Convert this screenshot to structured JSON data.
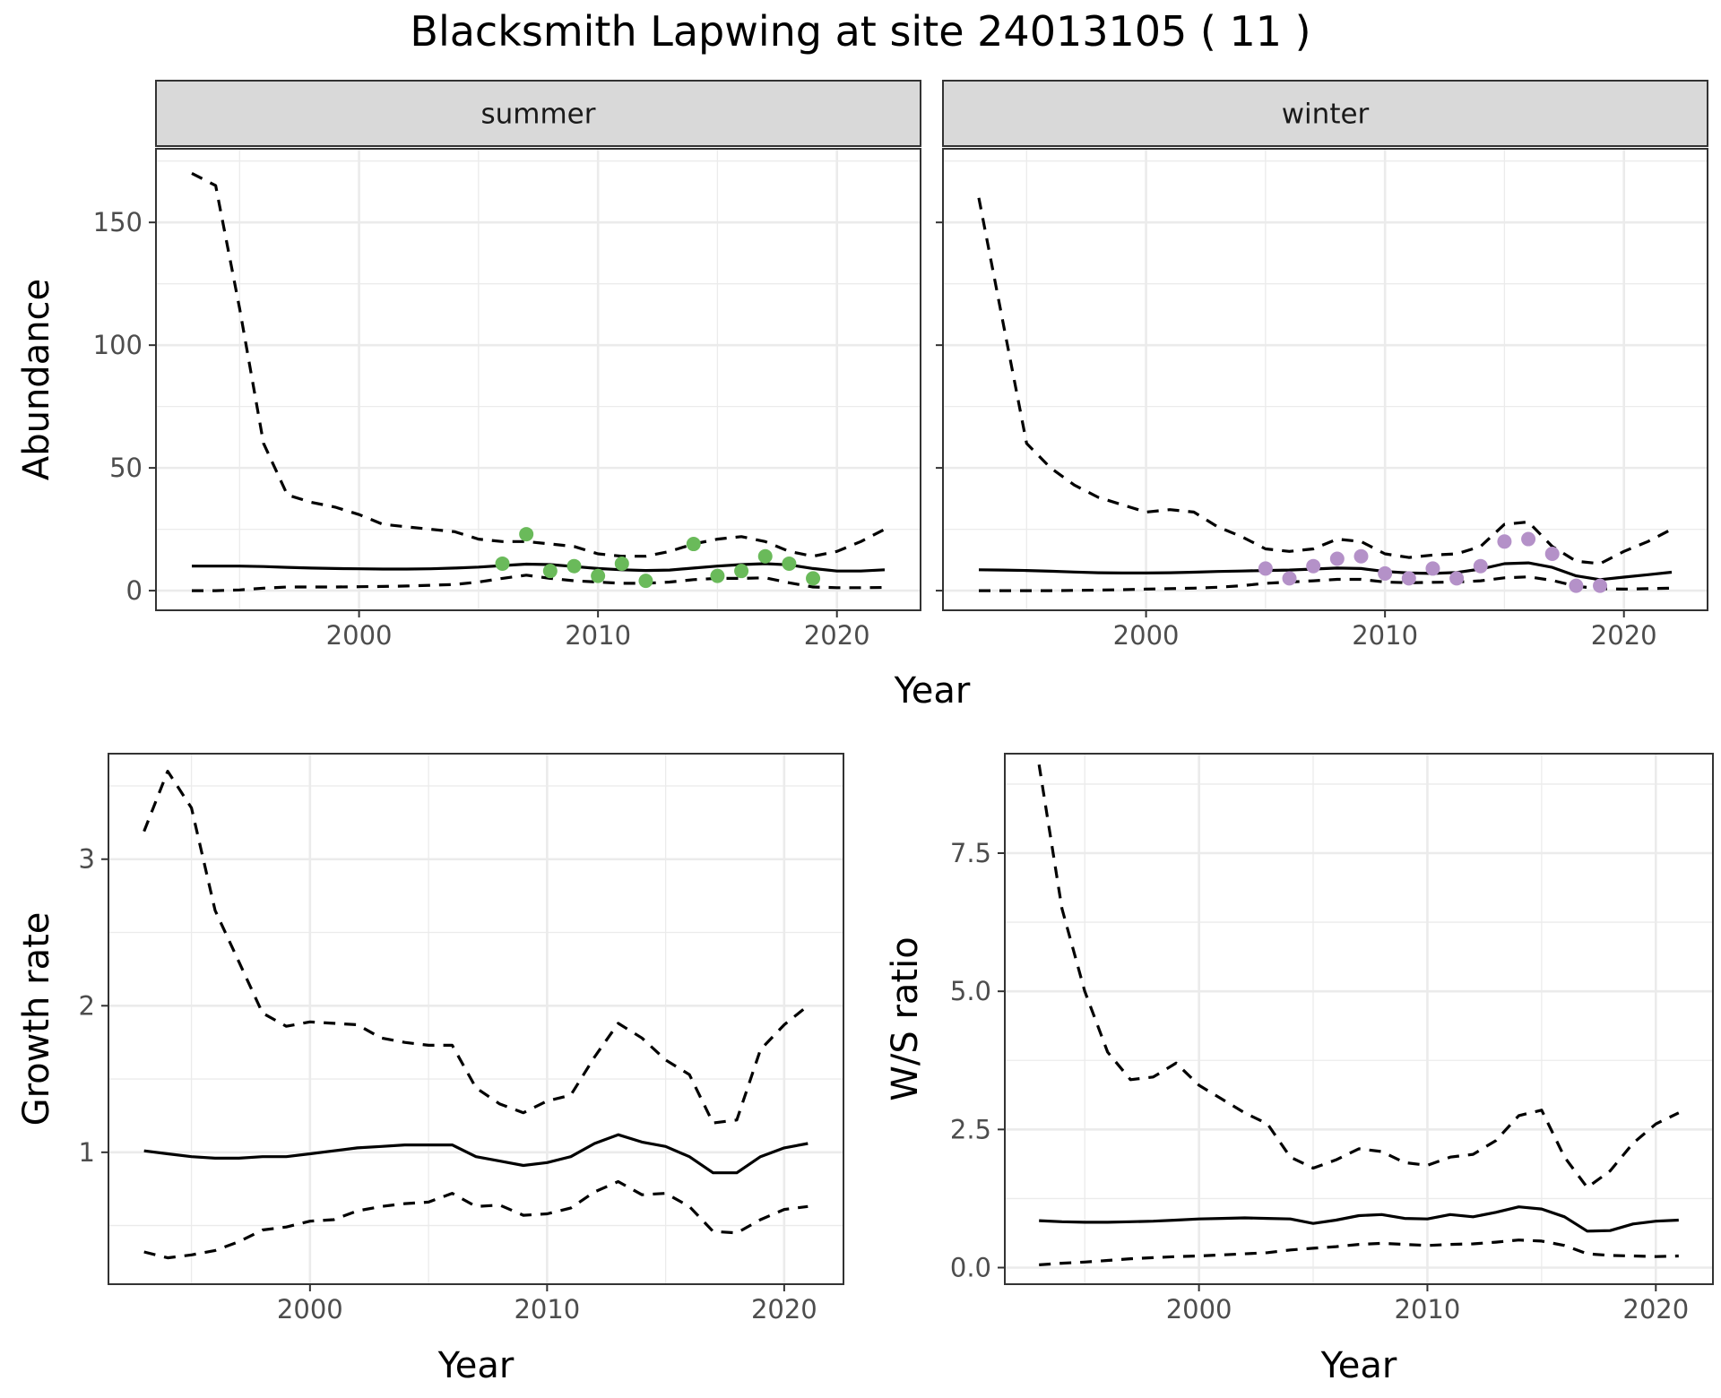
{
  "figure": {
    "title": "Blacksmith Lapwing at site 24013105 ( 11 )"
  },
  "colors": {
    "summer_points": "#6aba5a",
    "winter_points": "#b491c8",
    "lines": "#000000",
    "grid": "#ebebeb",
    "strip": "#d9d9d9"
  },
  "chart_data": [
    {
      "type": "line",
      "panel": "summer",
      "strip_label": "summer",
      "xlabel": "Year",
      "ylabel": "Abundance",
      "xlim": [
        1991.5,
        2023.5
      ],
      "ylim": [
        -8,
        180
      ],
      "xticks": [
        2000,
        2010,
        2020
      ],
      "yticks": [
        0,
        50,
        100,
        150
      ],
      "x": [
        1993,
        1994,
        1995,
        1996,
        1997,
        1998,
        1999,
        2000,
        2001,
        2002,
        2003,
        2004,
        2005,
        2006,
        2007,
        2008,
        2009,
        2010,
        2011,
        2012,
        2013,
        2014,
        2015,
        2016,
        2017,
        2018,
        2019,
        2020,
        2021,
        2022
      ],
      "series": [
        {
          "style": "solid",
          "values": [
            10,
            10,
            10,
            9.8,
            9.5,
            9.2,
            9,
            8.9,
            8.8,
            8.8,
            8.9,
            9.2,
            9.6,
            10.2,
            10.8,
            10.6,
            9.8,
            9,
            8.5,
            8.2,
            8.4,
            9.2,
            10,
            10.6,
            11,
            10.5,
            9,
            8,
            8,
            8.5
          ]
        },
        {
          "style": "dashed",
          "values": [
            170,
            165,
            115,
            60,
            39,
            36,
            34,
            31,
            27,
            26,
            25,
            24,
            21,
            20,
            20,
            19,
            18,
            15,
            14,
            14,
            16,
            19,
            21,
            22,
            20,
            16,
            14,
            16,
            20,
            25
          ]
        },
        {
          "style": "dashed",
          "values": [
            0,
            0,
            0.3,
            1,
            1.5,
            1.5,
            1.5,
            1.6,
            1.7,
            1.9,
            2.2,
            2.5,
            3.5,
            5,
            6.3,
            5,
            4,
            3.5,
            3,
            3,
            3.5,
            4.5,
            5,
            5,
            5.2,
            3.2,
            1.5,
            1.2,
            1.2,
            1.3
          ]
        },
        {
          "style": "points",
          "points": [
            [
              2006,
              11
            ],
            [
              2007,
              23
            ],
            [
              2008,
              8
            ],
            [
              2009,
              10
            ],
            [
              2010,
              6
            ],
            [
              2011,
              11
            ],
            [
              2012,
              4
            ],
            [
              2014,
              19
            ],
            [
              2015,
              6
            ],
            [
              2016,
              8
            ],
            [
              2017,
              14
            ],
            [
              2018,
              11
            ],
            [
              2019,
              5
            ]
          ]
        }
      ]
    },
    {
      "type": "line",
      "panel": "winter",
      "strip_label": "winter",
      "xlabel": "Year",
      "ylabel": "Abundance",
      "xlim": [
        1991.5,
        2023.5
      ],
      "ylim": [
        -8,
        180
      ],
      "xticks": [
        2000,
        2010,
        2020
      ],
      "yticks": [
        0,
        50,
        100,
        150
      ],
      "x": [
        1993,
        1994,
        1995,
        1996,
        1997,
        1998,
        1999,
        2000,
        2001,
        2002,
        2003,
        2004,
        2005,
        2006,
        2007,
        2008,
        2009,
        2010,
        2011,
        2012,
        2013,
        2014,
        2015,
        2016,
        2017,
        2018,
        2019,
        2020,
        2021,
        2022
      ],
      "series": [
        {
          "style": "solid",
          "values": [
            8.5,
            8.4,
            8.2,
            7.9,
            7.6,
            7.3,
            7.2,
            7.2,
            7.3,
            7.5,
            7.8,
            8,
            8.2,
            8.4,
            8.8,
            9.2,
            9,
            7.8,
            7.2,
            7,
            7.4,
            8.8,
            11,
            11.3,
            9.5,
            6,
            4.5,
            5.5,
            6.5,
            7.5
          ]
        },
        {
          "style": "dashed",
          "values": [
            160,
            110,
            60,
            50,
            43,
            38,
            35,
            32,
            33,
            32,
            26,
            22,
            17,
            16,
            17,
            21,
            20,
            15,
            13.5,
            14.5,
            15,
            18,
            27,
            28,
            18,
            12,
            11,
            16,
            20,
            25
          ]
        },
        {
          "style": "dashed",
          "values": [
            0,
            0,
            0,
            0,
            0.1,
            0.2,
            0.4,
            0.6,
            0.8,
            1,
            1.4,
            2,
            3,
            3.5,
            4,
            4.6,
            4.6,
            3.5,
            3.2,
            3.4,
            3.5,
            4,
            5.2,
            5.6,
            4.2,
            1.8,
            0.8,
            0.6,
            0.8,
            1
          ]
        },
        {
          "style": "points",
          "points": [
            [
              2005,
              9
            ],
            [
              2006,
              5
            ],
            [
              2007,
              10
            ],
            [
              2008,
              13
            ],
            [
              2009,
              14
            ],
            [
              2010,
              7
            ],
            [
              2011,
              5
            ],
            [
              2012,
              9
            ],
            [
              2013,
              5
            ],
            [
              2014,
              10
            ],
            [
              2015,
              20
            ],
            [
              2016,
              21
            ],
            [
              2017,
              15
            ],
            [
              2018,
              2
            ],
            [
              2019,
              2
            ]
          ]
        }
      ]
    },
    {
      "type": "line",
      "panel": "growth",
      "xlabel": "Year",
      "ylabel": "Growth rate",
      "xlim": [
        1991.5,
        2022.5
      ],
      "ylim": [
        0.1,
        3.72
      ],
      "xticks": [
        2000,
        2010,
        2020
      ],
      "yticks": [
        1,
        2,
        3
      ],
      "x": [
        1993,
        1994,
        1995,
        1996,
        1997,
        1998,
        1999,
        2000,
        2001,
        2002,
        2003,
        2004,
        2005,
        2006,
        2007,
        2008,
        2009,
        2010,
        2011,
        2012,
        2013,
        2014,
        2015,
        2016,
        2017,
        2018,
        2019,
        2020,
        2021
      ],
      "series": [
        {
          "style": "solid",
          "values": [
            1.01,
            0.99,
            0.97,
            0.96,
            0.96,
            0.97,
            0.97,
            0.99,
            1.01,
            1.03,
            1.04,
            1.05,
            1.05,
            1.05,
            0.97,
            0.94,
            0.91,
            0.93,
            0.97,
            1.06,
            1.12,
            1.07,
            1.04,
            0.97,
            0.86,
            0.86,
            0.97,
            1.03,
            1.06
          ]
        },
        {
          "style": "dashed",
          "values": [
            3.19,
            3.6,
            3.35,
            2.65,
            2.3,
            1.95,
            1.86,
            1.89,
            1.88,
            1.87,
            1.78,
            1.75,
            1.73,
            1.73,
            1.44,
            1.33,
            1.27,
            1.35,
            1.39,
            1.65,
            1.88,
            1.78,
            1.63,
            1.53,
            1.2,
            1.22,
            1.7,
            1.87,
            2
          ]
        },
        {
          "style": "dashed",
          "values": [
            0.32,
            0.28,
            0.3,
            0.33,
            0.39,
            0.47,
            0.49,
            0.53,
            0.54,
            0.6,
            0.63,
            0.65,
            0.66,
            0.72,
            0.63,
            0.64,
            0.57,
            0.58,
            0.62,
            0.73,
            0.8,
            0.71,
            0.72,
            0.63,
            0.46,
            0.45,
            0.54,
            0.61,
            0.63
          ]
        }
      ]
    },
    {
      "type": "line",
      "panel": "ratio",
      "xlabel": "Year",
      "ylabel": "W/S ratio",
      "xlim": [
        1991.5,
        2022.5
      ],
      "ylim": [
        -0.3,
        9.3
      ],
      "xticks": [
        2000,
        2010,
        2020
      ],
      "yticks": [
        0.0,
        2.5,
        5.0,
        7.5
      ],
      "ytick_labels": [
        "0.0",
        "2.5",
        "5.0",
        "7.5"
      ],
      "x": [
        1993,
        1994,
        1995,
        1996,
        1997,
        1998,
        1999,
        2000,
        2001,
        2002,
        2003,
        2004,
        2005,
        2006,
        2007,
        2008,
        2009,
        2010,
        2011,
        2012,
        2013,
        2014,
        2015,
        2016,
        2017,
        2018,
        2019,
        2020,
        2021
      ],
      "series": [
        {
          "style": "solid",
          "values": [
            0.85,
            0.83,
            0.82,
            0.82,
            0.83,
            0.84,
            0.86,
            0.88,
            0.89,
            0.9,
            0.89,
            0.88,
            0.8,
            0.86,
            0.94,
            0.96,
            0.89,
            0.88,
            0.96,
            0.92,
            1,
            1.1,
            1.06,
            0.92,
            0.66,
            0.67,
            0.79,
            0.84,
            0.86
          ]
        },
        {
          "style": "dashed",
          "values": [
            9.1,
            6.5,
            5,
            3.9,
            3.4,
            3.45,
            3.7,
            3.3,
            3.05,
            2.8,
            2.6,
            2,
            1.8,
            1.95,
            2.15,
            2.1,
            1.9,
            1.85,
            2,
            2.05,
            2.3,
            2.75,
            2.85,
            2,
            1.45,
            1.75,
            2.25,
            2.6,
            2.8
          ]
        },
        {
          "style": "dashed",
          "values": [
            0.05,
            0.08,
            0.1,
            0.13,
            0.16,
            0.18,
            0.2,
            0.21,
            0.23,
            0.25,
            0.27,
            0.32,
            0.35,
            0.38,
            0.42,
            0.44,
            0.42,
            0.4,
            0.42,
            0.43,
            0.46,
            0.5,
            0.48,
            0.4,
            0.25,
            0.22,
            0.21,
            0.2,
            0.21
          ]
        }
      ]
    }
  ]
}
